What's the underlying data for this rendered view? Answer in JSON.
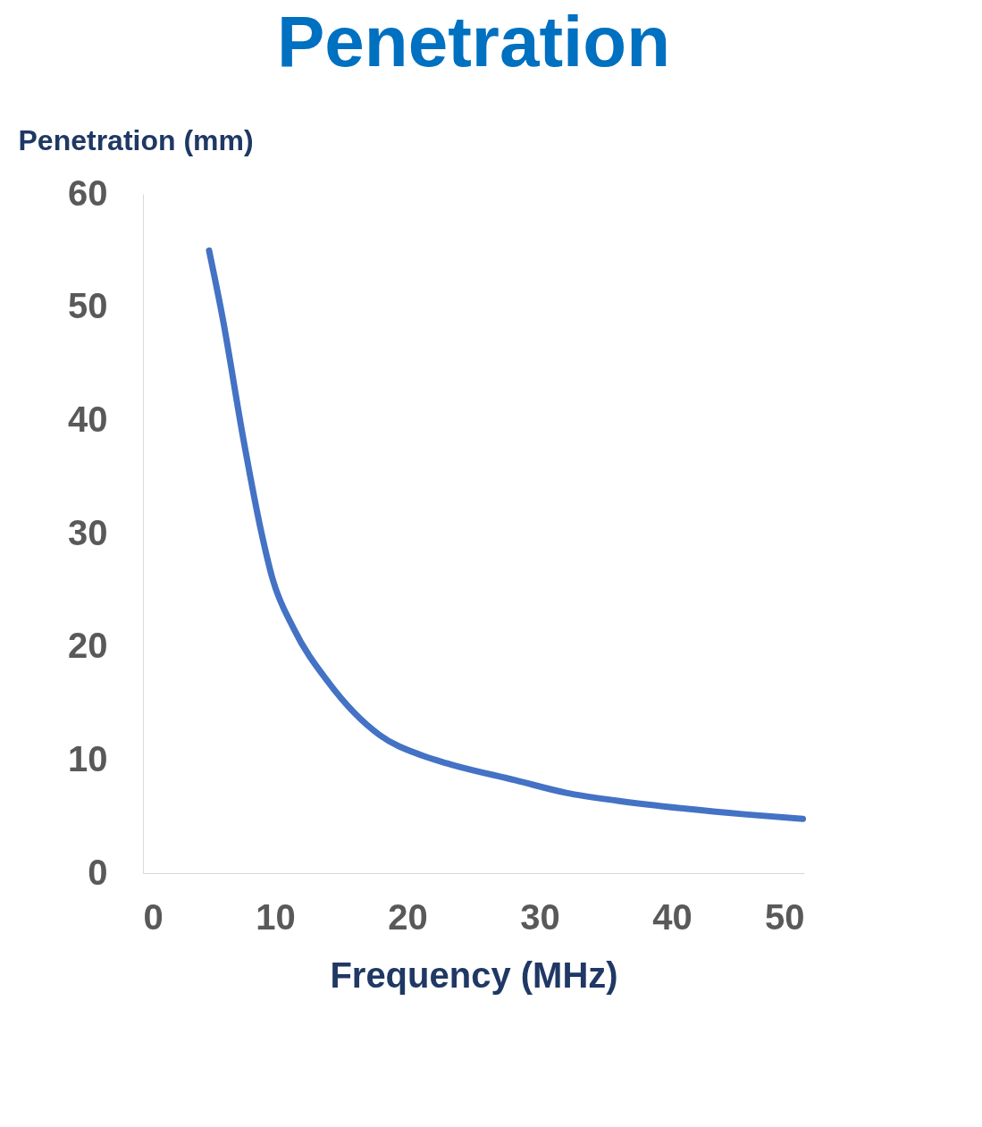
{
  "chart_data": {
    "type": "line",
    "title": "Penetration",
    "xlabel": "Frequency (MHz)",
    "ylabel": "Penetration (mm)",
    "series": [
      {
        "color": "#4472c4",
        "x": [
          5.0,
          6.0,
          7.6,
          8.9,
          9.8,
          11.4,
          14.0,
          17.9,
          21.1,
          23.0,
          28.2,
          32.0,
          35.9,
          41.0,
          45.5,
          49.9
        ],
        "values": [
          55.0,
          49.2,
          38.3,
          30.4,
          26.0,
          21.6,
          16.9,
          12.2,
          10.4,
          9.7,
          8.2,
          7.1,
          6.4,
          5.7,
          5.2,
          4.8
        ]
      }
    ],
    "xlim": [
      0,
      50
    ],
    "xticks": [
      0,
      10,
      20,
      30,
      40,
      50
    ],
    "ylim": [
      0,
      60
    ],
    "yticks": [
      0,
      10,
      20,
      30,
      40,
      50,
      60
    ],
    "grid": false,
    "line_style": "solid"
  }
}
